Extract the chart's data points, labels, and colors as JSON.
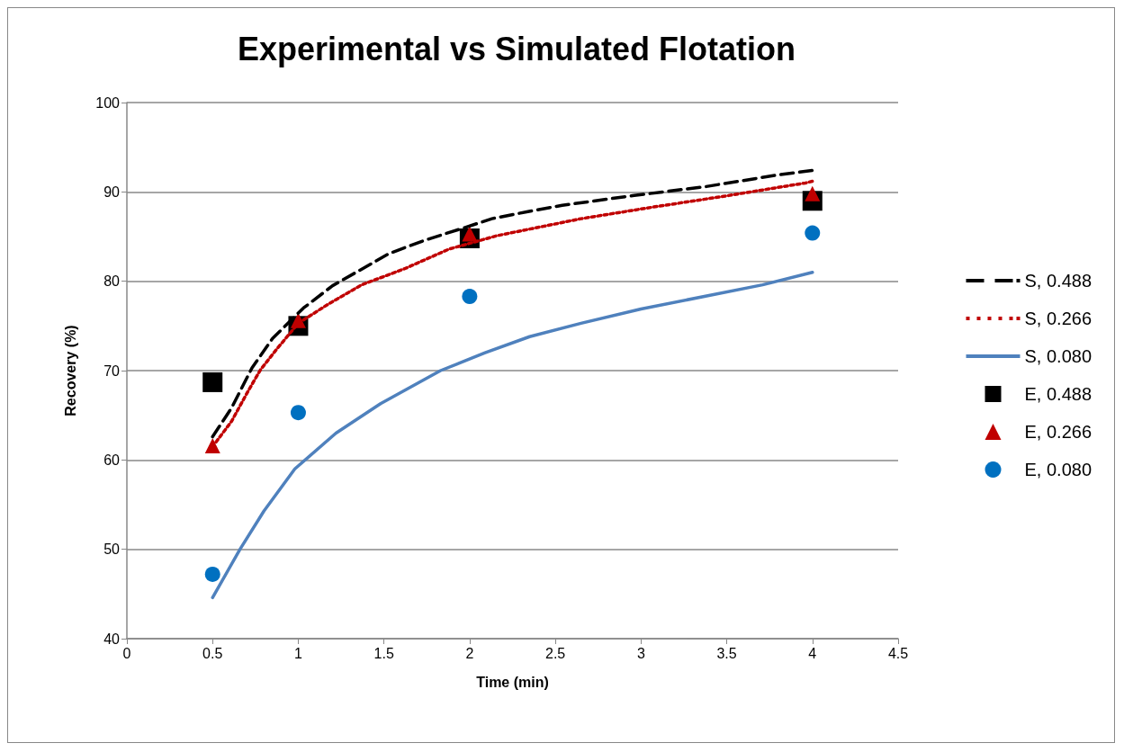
{
  "chart_data": {
    "type": "line",
    "title": "Experimental vs Simulated Flotation",
    "xlabel": "Time (min)",
    "ylabel": "Recovery (%)",
    "xlim": [
      0,
      4.5
    ],
    "xticks": [
      0,
      0.5,
      1,
      1.5,
      2,
      2.5,
      3,
      3.5,
      4,
      4.5
    ],
    "ylim": [
      40,
      100
    ],
    "yticks": [
      40,
      50,
      60,
      70,
      80,
      90,
      100
    ],
    "grid": "y",
    "legend": "right",
    "series": [
      {
        "name": "S, 0.488",
        "color": "#000000",
        "line_style": "dashed",
        "marker": "none",
        "x": [
          0.5,
          0.61,
          0.73,
          0.85,
          1.03,
          1.2,
          1.53,
          1.74,
          1.97,
          2.13,
          2.34,
          2.54,
          2.96,
          3.38,
          3.8,
          4.0
        ],
        "values": [
          62.6,
          65.8,
          70.3,
          73.6,
          77.0,
          79.5,
          83.1,
          84.6,
          86.0,
          87.0,
          87.8,
          88.5,
          89.6,
          90.6,
          91.9,
          92.4
        ]
      },
      {
        "name": "S, 0.266",
        "color": "#c00000",
        "line_style": "dotted",
        "marker": "none",
        "x": [
          0.52,
          0.61,
          0.71,
          0.78,
          0.87,
          1.0,
          1.18,
          1.37,
          1.62,
          1.88,
          2.16,
          2.65,
          3.07,
          3.48,
          3.96,
          4.0
        ],
        "values": [
          62.0,
          64.3,
          67.8,
          70.1,
          72.3,
          75.3,
          77.5,
          79.6,
          81.4,
          83.6,
          85.1,
          87.0,
          88.3,
          89.5,
          91.0,
          91.2
        ]
      },
      {
        "name": "S, 0.080",
        "color": "#4f81bd",
        "line_style": "solid",
        "marker": "none",
        "x": [
          0.5,
          0.66,
          0.8,
          0.98,
          1.22,
          1.48,
          1.83,
          2.09,
          2.35,
          2.65,
          3.0,
          3.71,
          4.0
        ],
        "values": [
          44.6,
          50.0,
          54.3,
          59.0,
          63.0,
          66.3,
          70.0,
          72.0,
          73.8,
          75.3,
          76.9,
          79.6,
          81.0
        ]
      },
      {
        "name": "E, 0.488",
        "type": "scatter",
        "color": "#000000",
        "marker": "square",
        "x": [
          0.5,
          1,
          2,
          4
        ],
        "values": [
          68.7,
          75.0,
          84.8,
          89.0
        ]
      },
      {
        "name": "E, 0.266",
        "type": "scatter",
        "color": "#c00000",
        "marker": "triangle",
        "x": [
          0.5,
          1,
          2,
          4
        ],
        "values": [
          61.6,
          75.6,
          85.3,
          89.8
        ]
      },
      {
        "name": "E, 0.080",
        "type": "scatter",
        "color": "#0070c0",
        "marker": "circle",
        "x": [
          0.5,
          1,
          2,
          4
        ],
        "values": [
          47.2,
          65.3,
          78.3,
          85.4
        ]
      }
    ]
  }
}
